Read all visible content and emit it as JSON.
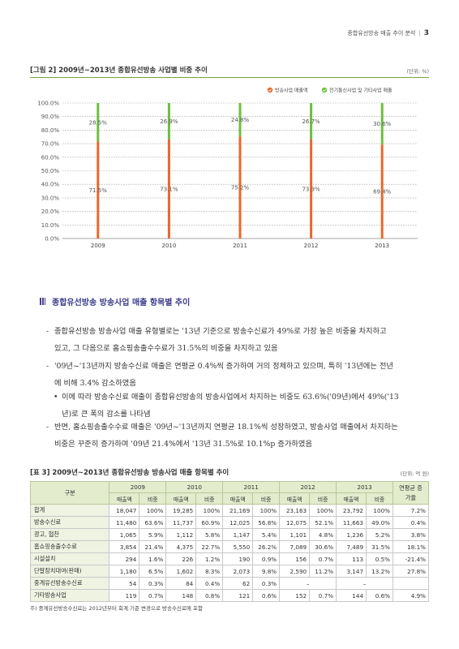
{
  "running_header": {
    "title": "종합유선방송 매출 추이 분석",
    "page": "3"
  },
  "figure": {
    "title": "[그림 2]  2009년~2013년 종합유선방송 사업별 비중 추이",
    "unit": "(단위: %)"
  },
  "chart_data": {
    "type": "bar",
    "stacked": true,
    "categories": [
      "2009",
      "2010",
      "2011",
      "2012",
      "2013"
    ],
    "series": [
      {
        "name": "방송사업 매출액",
        "values": [
          71.5,
          73.1,
          75.2,
          73.3,
          69.4
        ],
        "labels": [
          "71.5%",
          "73.1%",
          "75.2%",
          "73.3%",
          "69.4%"
        ],
        "color": "#e8682b"
      },
      {
        "name": "전기통신사업 및 기타사업 매출",
        "values": [
          28.5,
          26.9,
          24.8,
          26.7,
          30.6
        ],
        "labels": [
          "28.5%",
          "26.9%",
          "24.8%",
          "26.7%",
          "30.6%"
        ],
        "color": "#6cbf3c"
      }
    ],
    "ylim": [
      0,
      100
    ],
    "yticks": [
      "0.0%",
      "10.0%",
      "20.0%",
      "30.0%",
      "40.0%",
      "50.0%",
      "60.0%",
      "70.0%",
      "80.0%",
      "90.0%",
      "100.0%"
    ],
    "grid": true,
    "legend": "top-right"
  },
  "section": {
    "title": "종합유선방송 방송사업 매출 항목별 추이"
  },
  "paragraphs": [
    {
      "marker": "-",
      "lines": [
        "종합유선방송 방송사업 매출 유형별로는 '13년 기준으로 방송수신료가 49%로 가장 높은 비중을 차지하고",
        "있고, 그 다음으로 홈쇼핑송출수수료가 31.5%의 비중을 차지하고 있음"
      ]
    },
    {
      "marker": "-",
      "lines": [
        "'09년~'13년까지 방송수신료 매출은 연평균 0.4%씩 증가하여 거의 정체하고 있으며, 특히 '13년에는 전년",
        "에 비해 3.4% 감소하였음"
      ]
    },
    {
      "marker": "•",
      "lines": [
        "이에 따라 방송수신료 매출이 종합유선방송의 방송사업에서 차지하는 비중도 63.6%('09년)에서 49%('13",
        "년)로 큰 폭의 감소를 나타냄"
      ]
    },
    {
      "marker": "-",
      "lines": [
        "반면, 홈쇼핑송출수수료 매출은 '09년~'13년까지 연평균 18.1%씩 성장하였고, 방송사업 매출에서 차지하는",
        "비중은 꾸준히 증가하여 '09년 21.4%에서 '13년 31.5%로 10.1%p 증가하였음"
      ]
    }
  ],
  "table": {
    "title": "[표 3]  2009년~2013년 종합유선방송 방송사업 매출 항목별 추이",
    "unit": "(단위: 억 원)",
    "col_group": "구분",
    "years": [
      "2009",
      "2010",
      "2011",
      "2012",
      "2013"
    ],
    "sub_headers": [
      "매출액",
      "비중"
    ],
    "cagr_header": "연평균 증가율",
    "rows": [
      {
        "label": "합계",
        "cells": [
          "18,047",
          "100%",
          "19,285",
          "100%",
          "21,169",
          "100%",
          "23,163",
          "100%",
          "23,792",
          "100%"
        ],
        "cagr": "7.2%"
      },
      {
        "label": "방송수신료",
        "cells": [
          "11,480",
          "63.6%",
          "11,737",
          "60.9%",
          "12,025",
          "56.8%",
          "12,075",
          "52.1%",
          "11,663",
          "49.0%"
        ],
        "cagr": "0.4%"
      },
      {
        "label": "광고, 협찬",
        "cells": [
          "1,065",
          "5.9%",
          "1,112",
          "5.8%",
          "1,147",
          "5.4%",
          "1,101",
          "4.8%",
          "1,236",
          "5.2%"
        ],
        "cagr": "3.8%"
      },
      {
        "label": "홈쇼핑송출수수료",
        "cells": [
          "3,854",
          "21.4%",
          "4,375",
          "22.7%",
          "5,550",
          "26.2%",
          "7,089",
          "30.6%",
          "7,489",
          "31.5%"
        ],
        "cagr": "18.1%"
      },
      {
        "label": "시설설치",
        "cells": [
          "294",
          "1.6%",
          "226",
          "1.2%",
          "190",
          "0.9%",
          "156",
          "0.7%",
          "113",
          "0.5%"
        ],
        "cagr": "-21.4%"
      },
      {
        "label": "단말장치대여(판매)",
        "cells": [
          "1,180",
          "6.5%",
          "1,602",
          "8.3%",
          "2,073",
          "9.8%",
          "2,590",
          "11.2%",
          "3,147",
          "13.2%"
        ],
        "cagr": "27.8%"
      },
      {
        "label": "중계유선방송수신료",
        "cells": [
          "54",
          "0.3%",
          "84",
          "0.4%",
          "62",
          "0.3%",
          "",
          "",
          "",
          ""
        ],
        "merged_dash": "–",
        "cagr": ""
      },
      {
        "label": "기타방송사업",
        "cells": [
          "119",
          "0.7%",
          "148",
          "0.8%",
          "121",
          "0.6%",
          "152",
          "0.7%",
          "144",
          "0.6%"
        ],
        "cagr": "4.9%"
      }
    ]
  },
  "note": "주) 중계유선방송수신료는 2012년부터 회계 기준 변경으로 방송수신료에 포함"
}
